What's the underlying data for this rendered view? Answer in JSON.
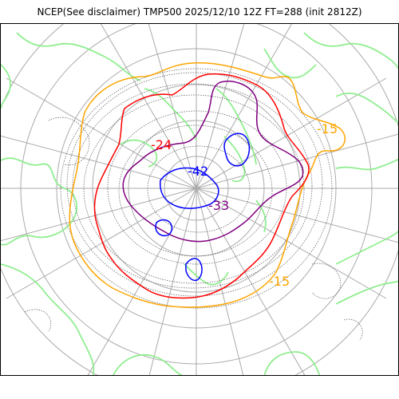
{
  "title": "NCEP(See disclaimer) TMP500 2025/12/10 12Z FT=288 (init 2812Z)",
  "map": {
    "projection": "polar-stereographic",
    "variable": "TMP500",
    "contour_labels": [
      {
        "id": "neg42",
        "text": "-42",
        "color": "#0000ff"
      },
      {
        "id": "neg33",
        "text": "-33",
        "color": "#800080"
      },
      {
        "id": "neg24",
        "text": "-24",
        "color": "#ff0000"
      },
      {
        "id": "neg15a",
        "text": "-15",
        "color": "#ffa500"
      },
      {
        "id": "neg15b",
        "text": "-15",
        "color": "#ffa500"
      }
    ],
    "contour_colors": {
      "minus42": "#0000ff",
      "minus33": "#800080",
      "minus24": "#ff0000",
      "minus15": "#ffa500",
      "coastline": "#90ee90",
      "fine_contours": "#555555",
      "grid": "#aaaaaa"
    }
  }
}
